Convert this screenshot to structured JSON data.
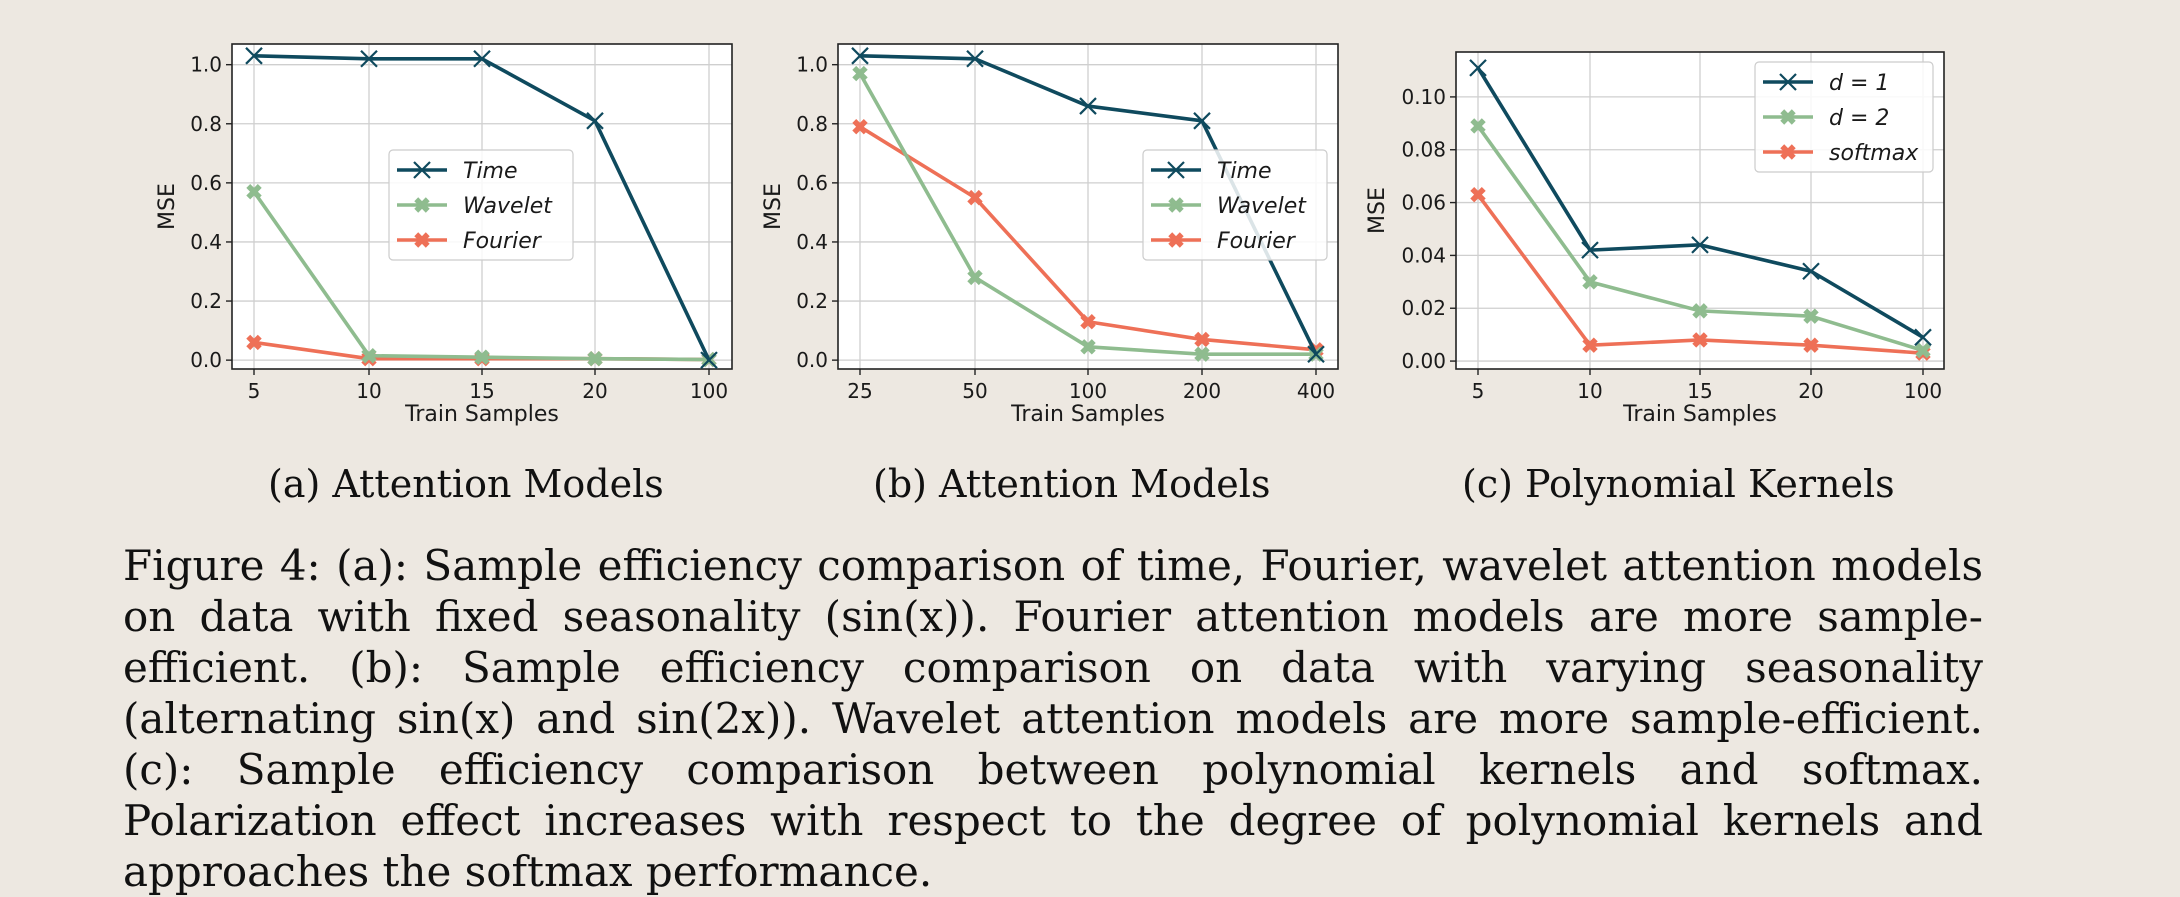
{
  "chart_data": [
    {
      "type": "line",
      "x_categories": [
        "5",
        "10",
        "15",
        "20",
        "100"
      ],
      "xlabel": "Train Samples",
      "ylabel": "MSE",
      "ylim": [
        -0.03,
        1.07
      ],
      "yticks": [
        "0.0",
        "0.2",
        "0.4",
        "0.6",
        "0.8",
        "1.0"
      ],
      "ytick_values": [
        0.0,
        0.2,
        0.4,
        0.6,
        0.8,
        1.0
      ],
      "grid": true,
      "legend_placement": "center",
      "series": [
        {
          "name": "Time",
          "marker": "x",
          "color": "#0f4a5e",
          "values": [
            1.03,
            1.02,
            1.02,
            0.81,
            0.0
          ]
        },
        {
          "name": "Wavelet",
          "marker": "X",
          "color": "#8fbc8f",
          "values": [
            0.57,
            0.015,
            0.01,
            0.005,
            0.002
          ]
        },
        {
          "name": "Fourier",
          "marker": "X",
          "color": "#ee7057",
          "values": [
            0.06,
            0.005,
            0.005,
            0.005,
            0.002
          ]
        }
      ],
      "subcaption": "(a) Attention Models"
    },
    {
      "type": "line",
      "x_categories": [
        "25",
        "50",
        "100",
        "200",
        "400"
      ],
      "xlabel": "Train Samples",
      "ylabel": "MSE",
      "ylim": [
        -0.03,
        1.07
      ],
      "yticks": [
        "0.0",
        "0.2",
        "0.4",
        "0.6",
        "0.8",
        "1.0"
      ],
      "ytick_values": [
        0.0,
        0.2,
        0.4,
        0.6,
        0.8,
        1.0
      ],
      "grid": true,
      "legend_placement": "center-right",
      "series": [
        {
          "name": "Time",
          "marker": "x",
          "color": "#0f4a5e",
          "values": [
            1.03,
            1.02,
            0.86,
            0.81,
            0.02
          ]
        },
        {
          "name": "Wavelet",
          "marker": "X",
          "color": "#8fbc8f",
          "values": [
            0.97,
            0.28,
            0.045,
            0.02,
            0.02
          ]
        },
        {
          "name": "Fourier",
          "marker": "X",
          "color": "#ee7057",
          "values": [
            0.79,
            0.55,
            0.13,
            0.07,
            0.035
          ]
        }
      ],
      "subcaption": "(b) Attention Models"
    },
    {
      "type": "line",
      "x_categories": [
        "5",
        "10",
        "15",
        "20",
        "100"
      ],
      "xlabel": "Train Samples",
      "ylabel": "MSE",
      "ylim": [
        -0.003,
        0.117
      ],
      "yticks": [
        "0.00",
        "0.02",
        "0.04",
        "0.06",
        "0.08",
        "0.10"
      ],
      "ytick_values": [
        0.0,
        0.02,
        0.04,
        0.06,
        0.08,
        0.1
      ],
      "grid": true,
      "legend_placement": "top-right",
      "series": [
        {
          "name": "d = 1",
          "marker": "x",
          "color": "#0f4a5e",
          "values": [
            0.111,
            0.042,
            0.044,
            0.034,
            0.009
          ]
        },
        {
          "name": "d = 2",
          "marker": "X",
          "color": "#8fbc8f",
          "values": [
            0.089,
            0.03,
            0.019,
            0.017,
            0.004
          ]
        },
        {
          "name": "softmax",
          "marker": "X",
          "color": "#ee7057",
          "values": [
            0.063,
            0.006,
            0.008,
            0.006,
            0.003
          ]
        }
      ],
      "subcaption": "(c) Polynomial Kernels"
    }
  ],
  "caption": {
    "text": "Figure 4: (a): Sample efficiency comparison of time, Fourier, wavelet attention models on data with fixed seasonality (sin(x)). Fourier attention models are more sample-efficient. (b): Sample efficiency comparison on data with varying seasonality (alternating sin(x) and sin(2x)). Wavelet attention models are more sample-efficient. (c): Sample efficiency comparison between polynomial kernels and softmax. Polarization effect increases with respect to the degree of polynomial kernels and approaches the softmax performance."
  }
}
